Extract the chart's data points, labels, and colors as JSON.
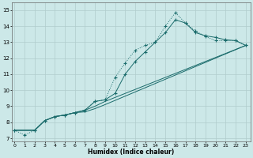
{
  "xlabel": "Humidex (Indice chaleur)",
  "background_color": "#cce8e8",
  "grid_color": "#b0cccc",
  "line_color": "#1a6b6b",
  "x_ticks": [
    0,
    1,
    2,
    3,
    4,
    5,
    6,
    7,
    8,
    9,
    10,
    11,
    12,
    13,
    14,
    15,
    16,
    17,
    18,
    19,
    20,
    21,
    22,
    23
  ],
  "y_ticks": [
    7,
    8,
    9,
    10,
    11,
    12,
    13,
    14,
    15
  ],
  "ylim": [
    6.8,
    15.5
  ],
  "xlim": [
    -0.3,
    23.5
  ],
  "series": [
    {
      "x": [
        0,
        1,
        2,
        3,
        4,
        5,
        6,
        7,
        8,
        9,
        10,
        11,
        12,
        13,
        14,
        15,
        16,
        17,
        18,
        19,
        20,
        21,
        22,
        23
      ],
      "y": [
        7.5,
        7.2,
        7.5,
        8.1,
        8.35,
        8.45,
        8.6,
        8.75,
        9.3,
        9.4,
        10.8,
        11.7,
        12.5,
        12.8,
        13.0,
        14.0,
        14.85,
        14.2,
        13.7,
        13.35,
        13.1,
        13.1,
        13.1,
        12.8
      ],
      "linestyle": "dotted",
      "marker": "+"
    },
    {
      "x": [
        0,
        2,
        3,
        4,
        5,
        6,
        7,
        8,
        9,
        10,
        11,
        12,
        13,
        14,
        15,
        16,
        17,
        18,
        19,
        20,
        21,
        22,
        23
      ],
      "y": [
        7.5,
        7.5,
        8.1,
        8.35,
        8.45,
        8.6,
        8.75,
        9.3,
        9.4,
        9.8,
        11.0,
        11.8,
        12.4,
        13.0,
        13.6,
        14.4,
        14.2,
        13.6,
        13.4,
        13.3,
        13.15,
        13.1,
        12.8
      ],
      "linestyle": "solid",
      "marker": "+"
    },
    {
      "x": [
        0,
        2,
        3,
        4,
        5,
        6,
        7,
        8,
        9,
        23
      ],
      "y": [
        7.5,
        7.5,
        8.1,
        8.35,
        8.45,
        8.6,
        8.75,
        9.0,
        9.3,
        12.8
      ],
      "linestyle": "solid",
      "marker": null
    },
    {
      "x": [
        0,
        2,
        3,
        4,
        5,
        6,
        7,
        8,
        9,
        23
      ],
      "y": [
        7.5,
        7.5,
        8.1,
        8.35,
        8.45,
        8.6,
        8.65,
        8.85,
        9.1,
        12.8
      ],
      "linestyle": "solid",
      "marker": null
    }
  ]
}
